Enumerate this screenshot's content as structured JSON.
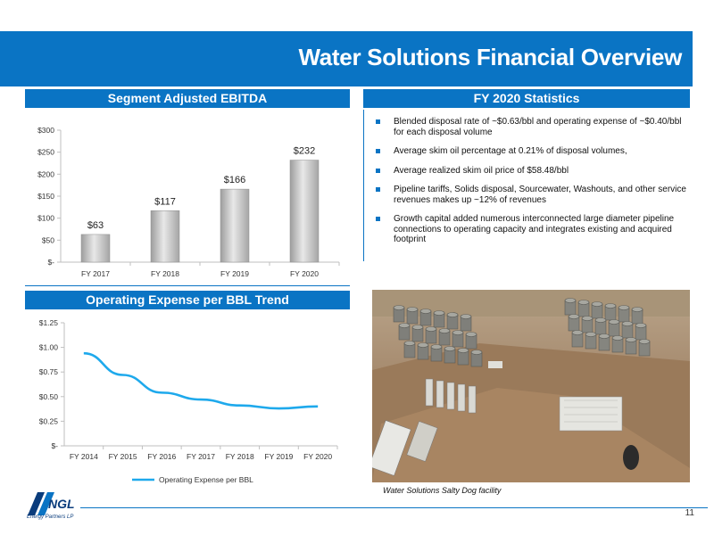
{
  "slide": {
    "title": "Water Solutions Financial Overview",
    "page_number": "11"
  },
  "colors": {
    "brand_blue": "#0a74c4",
    "line_series": "#1ea9ec",
    "bar_fill": "#b9b9b9"
  },
  "sections": {
    "ebitda_header": "Segment Adjusted EBITDA",
    "stats_header": "FY 2020 Statistics",
    "opex_header": "Operating Expense per BBL Trend"
  },
  "stats": {
    "items": [
      "Blended disposal rate of ~$0.63/bbl and operating expense of ~$0.40/bbl for each disposal volume",
      "Average skim oil percentage at 0.21% of disposal volumes,",
      "Average realized skim oil price of $58.48/bbl",
      "Pipeline tariffs, Solids disposal, Sourcewater, Washouts, and other service revenues makes up ~12% of revenues",
      "Growth capital added numerous interconnected large diameter pipeline connections to operating capacity and integrates existing and acquired footprint"
    ]
  },
  "photo": {
    "caption": "Water Solutions Salty Dog facility"
  },
  "logo": {
    "text": "NGL",
    "tagline": "Energy Partners LP"
  },
  "chart_data": [
    {
      "type": "bar",
      "categories": [
        "FY 2017",
        "FY 2018",
        "FY 2019",
        "FY 2020"
      ],
      "values": [
        63,
        117,
        166,
        232
      ],
      "data_labels": [
        "$63",
        "$117",
        "$166",
        "$232"
      ],
      "ylim": [
        0,
        300
      ],
      "yticks": [
        0,
        50,
        100,
        150,
        200,
        250,
        300
      ],
      "ytick_labels": [
        "$-",
        "$50",
        "$100",
        "$150",
        "$200",
        "$250",
        "$300"
      ],
      "title": "",
      "xlabel": "",
      "ylabel": "",
      "grid": false,
      "legend": "none"
    },
    {
      "type": "line",
      "categories": [
        "FY 2014",
        "FY 2015",
        "FY 2016",
        "FY 2017",
        "FY 2018",
        "FY 2019",
        "FY 2020"
      ],
      "series": [
        {
          "name": "Operating Expense per BBL",
          "values": [
            0.94,
            0.72,
            0.54,
            0.47,
            0.41,
            0.38,
            0.4
          ]
        }
      ],
      "ylim": [
        0,
        1.25
      ],
      "yticks": [
        0,
        0.25,
        0.5,
        0.75,
        1.0,
        1.25
      ],
      "ytick_labels": [
        "$-",
        "$0.25",
        "$0.50",
        "$0.75",
        "$1.00",
        "$1.25"
      ],
      "title": "",
      "xlabel": "",
      "ylabel": "",
      "grid": false,
      "legend": "bottom"
    }
  ]
}
